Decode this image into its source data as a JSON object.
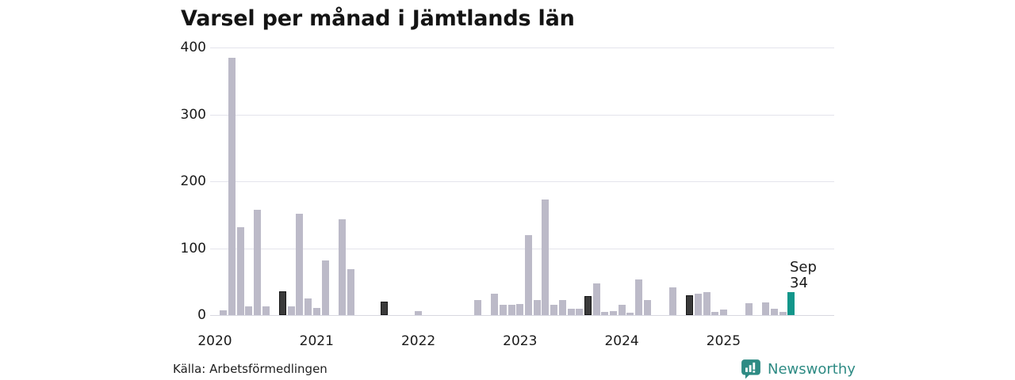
{
  "title": "Varsel per månad i Jämtlands län",
  "source": "Källa: Arbetsförmedlingen",
  "brand": {
    "name": "Newsworthy",
    "color": "#2e8b84"
  },
  "annotation": {
    "month": "Sep",
    "value": "34"
  },
  "colors": {
    "bar": "#bcbac8",
    "highlight_dark": "#3a3a3a",
    "current": "#12968a",
    "grid": "#e4e4ec",
    "baseline": "#d8d8e0",
    "text": "#1a1a1a"
  },
  "chart_data": {
    "type": "bar",
    "title": "Varsel per månad i Jämtlands län",
    "xlabel": "",
    "ylabel": "",
    "ylim": [
      0,
      400
    ],
    "yticks": [
      0,
      100,
      200,
      300,
      400
    ],
    "grid": "horizontal",
    "legend": "none",
    "x_start": "2020-01",
    "x_end": "2025-09",
    "year_labels": [
      "2020",
      "2021",
      "2022",
      "2023",
      "2024",
      "2025"
    ],
    "year_start_indices": [
      0,
      12,
      24,
      36,
      48,
      60
    ],
    "values": [
      0,
      7,
      385,
      131,
      13,
      157,
      13,
      0,
      36,
      13,
      152,
      25,
      11,
      82,
      0,
      143,
      69,
      0,
      0,
      0,
      20,
      0,
      0,
      0,
      6,
      0,
      0,
      0,
      0,
      0,
      0,
      22,
      0,
      32,
      15,
      15,
      17,
      120,
      23,
      173,
      16,
      23,
      10,
      9,
      29,
      47,
      5,
      6,
      15,
      4,
      53,
      22,
      0,
      0,
      41,
      0,
      30,
      32,
      34,
      5,
      8,
      0,
      0,
      18,
      0,
      19,
      10,
      5,
      34
    ],
    "dark_highlight_indices": [
      8,
      20,
      32,
      44,
      56
    ],
    "current_index": 68,
    "current_point": {
      "month": "Sep",
      "year": "2025",
      "value": 34
    }
  }
}
